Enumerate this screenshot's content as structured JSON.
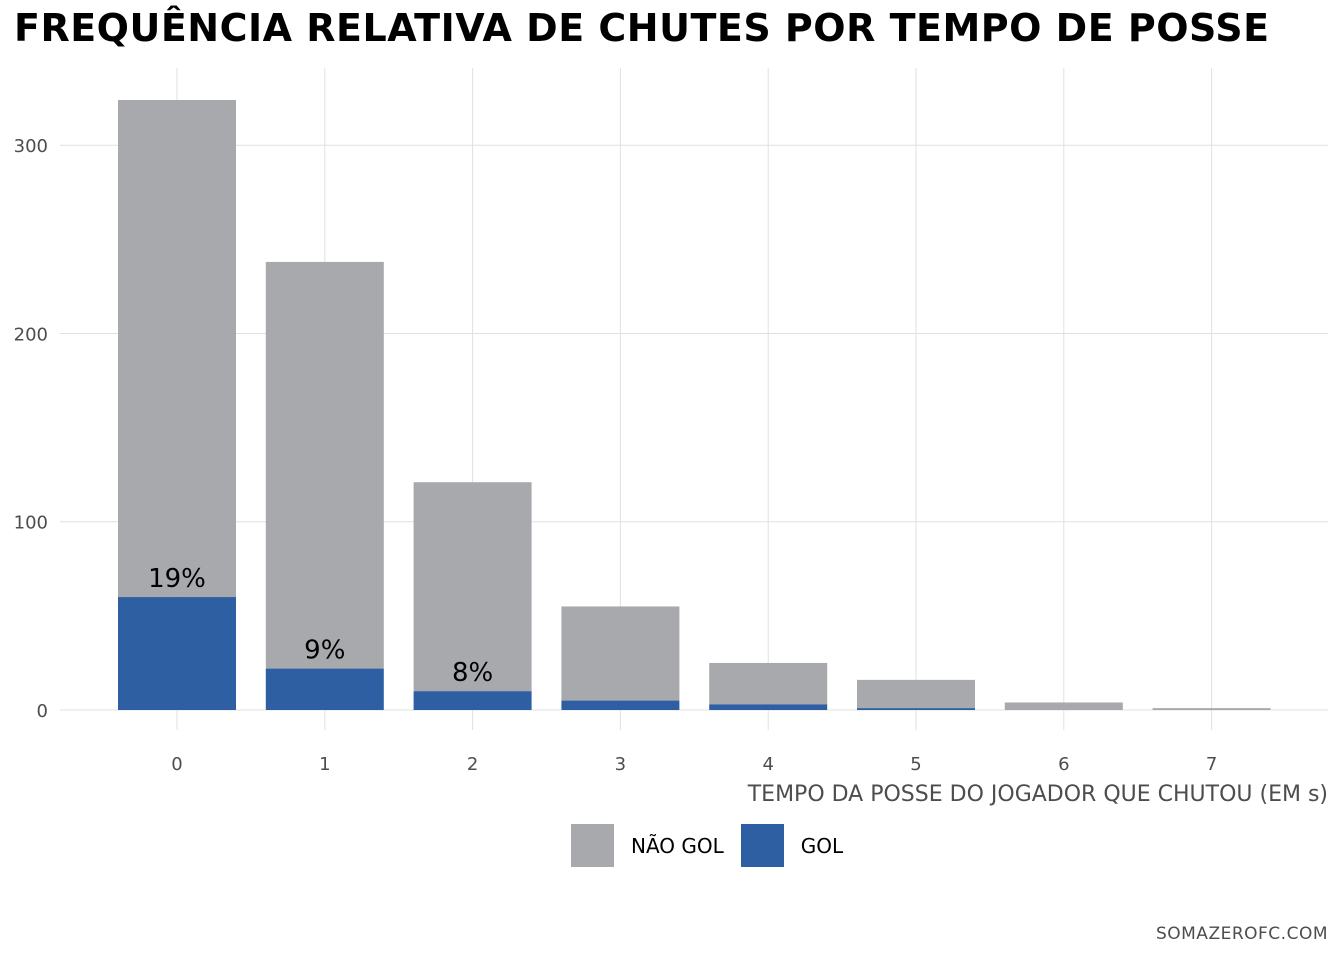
{
  "chart_data": {
    "type": "bar",
    "stacked": true,
    "title": "FREQUÊNCIA RELATIVA DE CHUTES POR TEMPO DE POSSE",
    "xlabel": "TEMPO DA POSSE DO JOGADOR QUE CHUTOU (EM s)",
    "ylabel": "",
    "categories": [
      "0",
      "1",
      "2",
      "3",
      "4",
      "5",
      "6",
      "7"
    ],
    "series": [
      {
        "name": "GOL",
        "color": "#2e5fa3",
        "values": [
          60,
          22,
          10,
          5,
          3,
          1,
          0,
          0
        ]
      },
      {
        "name": "NÃO GOL",
        "color": "#a8a9ac",
        "values": [
          264,
          216,
          111,
          50,
          22,
          15,
          4,
          1
        ]
      }
    ],
    "annotations": [
      {
        "category": "0",
        "text": "19%"
      },
      {
        "category": "1",
        "text": "9%"
      },
      {
        "category": "2",
        "text": "8%"
      }
    ],
    "yticks": [
      0,
      100,
      200,
      300
    ],
    "ylim": [
      0,
      330
    ],
    "grid": true,
    "legend_position": "bottom",
    "legend_order": [
      "NÃO GOL",
      "GOL"
    ]
  },
  "legend": {
    "items": [
      {
        "label": "NÃO GOL",
        "color": "#a8a9ac"
      },
      {
        "label": "GOL",
        "color": "#2e5fa3"
      }
    ]
  },
  "source": "SOMAZEROFC.COM"
}
